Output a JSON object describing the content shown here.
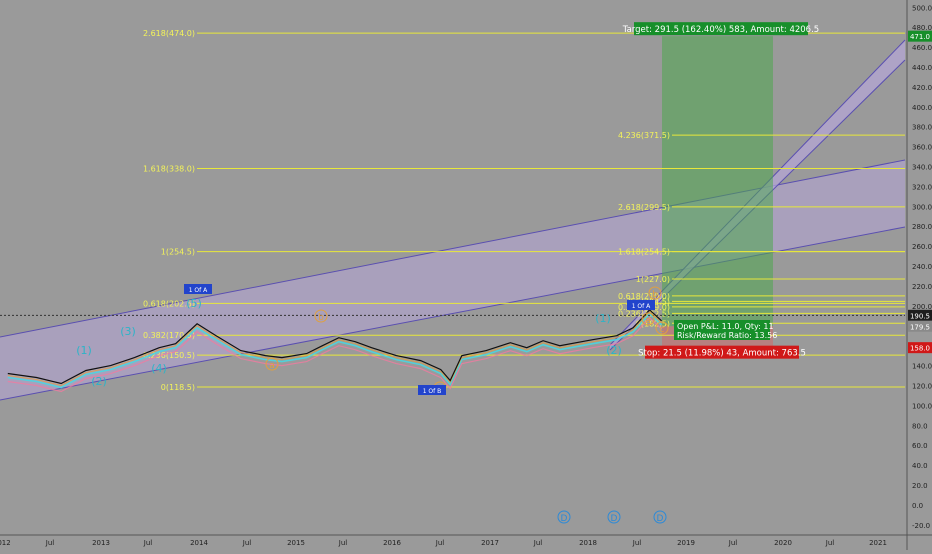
{
  "chart_data": {
    "type": "line",
    "x_tick_labels": [
      "012",
      "Jul",
      "2013",
      "Jul",
      "2014",
      "Jul",
      "2015",
      "Jul",
      "2016",
      "Jul",
      "2017",
      "Jul",
      "2018",
      "Jul",
      "2019",
      "Jul",
      "2020",
      "Jul",
      "2021"
    ],
    "y_ticks": [
      500,
      480,
      460,
      440,
      420,
      400,
      380,
      360,
      340,
      320,
      300,
      280,
      260,
      240,
      220,
      200,
      180,
      160,
      140,
      120,
      100,
      80,
      60,
      40,
      20,
      0,
      -20
    ],
    "ylim": [
      -28,
      508
    ],
    "price_series": {
      "x": [
        "2012-01-15",
        "2012-05-01",
        "2012-08-01",
        "2012-11-01",
        "2013-02-01",
        "2013-05-01",
        "2013-08-01",
        "2013-10-01",
        "2013-12-20",
        "2014-03-01",
        "2014-06-01",
        "2014-09-01",
        "2014-11-01",
        "2015-02-01",
        "2015-04-01",
        "2015-06-01",
        "2015-08-01",
        "2015-10-01",
        "2016-01-01",
        "2016-04-01",
        "2016-06-15",
        "2016-07-20",
        "2016-09-01",
        "2016-12-01",
        "2017-03-01",
        "2017-05-01",
        "2017-07-01",
        "2017-09-01",
        "2018-01-01",
        "2018-04-01",
        "2018-06-01",
        "2018-08-01",
        "2018-09-15"
      ],
      "y": [
        132,
        128,
        122,
        135,
        140,
        148,
        158,
        162,
        182,
        170,
        155,
        150,
        148,
        152,
        160,
        168,
        164,
        158,
        150,
        145,
        136,
        125,
        150,
        155,
        163,
        158,
        165,
        160,
        166,
        170,
        178,
        196,
        185
      ]
    },
    "fib_levels": [
      {
        "label": "2.618(474.0)",
        "y": 474.0
      },
      {
        "label": "1.618(338.0)",
        "y": 338.0
      },
      {
        "label": "1(254.5)",
        "y": 254.5
      },
      {
        "label": "0.618(202.5)",
        "y": 202.5
      },
      {
        "label": "0.382(170.5)",
        "y": 170.5
      },
      {
        "label": "0.236(150.5)",
        "y": 150.5
      },
      {
        "label": "0(118.5)",
        "y": 118.5
      },
      {
        "label": "4.236(371.5)",
        "y": 371.5
      },
      {
        "label": "2.618(299.5)",
        "y": 299.5
      },
      {
        "label": "1.618(254.5)",
        "y": 254.5
      },
      {
        "label": "1(227.0)",
        "y": 227.0
      },
      {
        "label": "0.618(210.0)",
        "y": 210.0
      },
      {
        "label": "0.5(204.5)",
        "y": 204.5
      },
      {
        "label": "0.382(199.0)",
        "y": 199.0
      },
      {
        "label": "0.236(192.5)",
        "y": 192.5
      },
      {
        "label": "0(182.5)",
        "y": 182.5
      }
    ],
    "wave_labels": [
      "(1)",
      "(2)",
      "(3)",
      "(4)",
      "(5)",
      "a",
      "b",
      "c",
      "(1)",
      "(2)",
      "a",
      "b",
      "c",
      "D",
      "D",
      "D"
    ],
    "position": {
      "target_text": "Target: 291.5 (162.40%) 583, Amount: 4206.5",
      "stop_text": "Stop: 21.5 (11.98%) 43, Amount: 763.5",
      "pnl_text": "Open P&L: 11.0, Qty: 11",
      "ratio_text": "Risk/Reward Ratio: 13.56",
      "entry": 179.5,
      "target": 471.0,
      "stop": 158.0
    },
    "price_badges": [
      {
        "text": "471.0",
        "y": 471.0,
        "color": "#178f2a"
      },
      {
        "text": "190.5",
        "y": 190.5,
        "color": "#1d1d1d"
      },
      {
        "text": "179.5",
        "y": 179.5,
        "color": "#8a8a8a"
      },
      {
        "text": "158.0",
        "y": 158.0,
        "color": "#d01818"
      }
    ],
    "tags": [
      "1 Of A",
      "1 Of A",
      "1 Of B"
    ],
    "grid": false
  }
}
